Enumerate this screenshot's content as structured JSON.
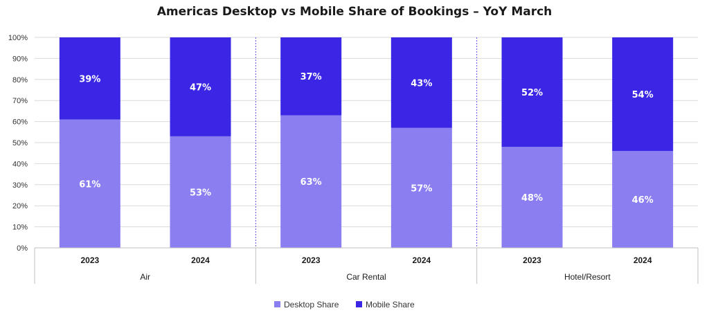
{
  "chart_data": {
    "type": "bar",
    "stacked": true,
    "title": "Americas Desktop vs Mobile Share of Bookings – YoY March",
    "xlabel": "",
    "ylabel": "",
    "ylim": [
      0,
      100
    ],
    "yticks": [
      "0%",
      "10%",
      "20%",
      "30%",
      "40%",
      "50%",
      "60%",
      "70%",
      "80%",
      "90%",
      "100%"
    ],
    "groups": [
      {
        "label": "Air",
        "categories": [
          "2023",
          "2024"
        ]
      },
      {
        "label": "Car Rental",
        "categories": [
          "2023",
          "2024"
        ]
      },
      {
        "label": "Hotel/Resort",
        "categories": [
          "2023",
          "2024"
        ]
      }
    ],
    "categories": [
      "2023",
      "2024",
      "2023",
      "2024",
      "2023",
      "2024"
    ],
    "series": [
      {
        "name": "Desktop Share",
        "color": "#8a7ef0",
        "values": [
          61,
          53,
          63,
          57,
          48,
          46
        ],
        "labels": [
          "61%",
          "53%",
          "63%",
          "57%",
          "48%",
          "46%"
        ]
      },
      {
        "name": "Mobile Share",
        "color": "#3a26e4",
        "values": [
          39,
          47,
          37,
          43,
          52,
          54
        ],
        "labels": [
          "39%",
          "47%",
          "37%",
          "43%",
          "52%",
          "54%"
        ]
      }
    ],
    "grid": true,
    "legend": "bottom-center"
  }
}
